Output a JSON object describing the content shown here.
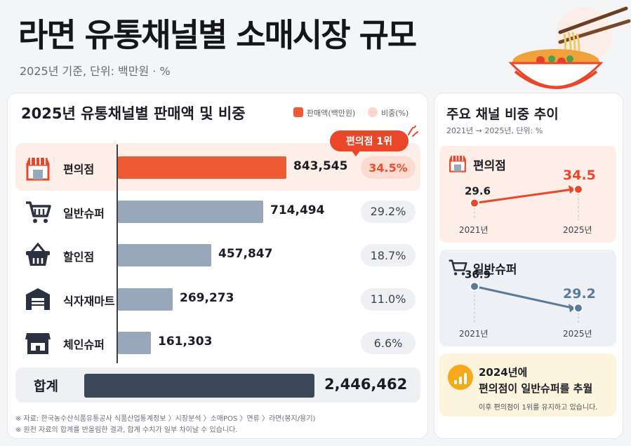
{
  "header": {
    "title": "라면 유통채널별 소매시장 규모",
    "subtitle": "2025년 기준, 단위: 백만원 · %"
  },
  "left_panel": {
    "title": "2025년 유통채널별 판매액 및 비중",
    "legend_sales": "판매액(백만원)",
    "legend_share": "비중(%)",
    "callout": "편의점 1위",
    "total_label": "합계",
    "total_value": "2,446,462"
  },
  "right_panel": {
    "title": "주요 채널 비중 추이",
    "subtitle": "2021년 → 2025년, 단위: %",
    "conv_title": "편의점",
    "super_title": "일반슈퍼",
    "year_start": "2021년",
    "year_end": "2025년",
    "note_line1": "2024년에",
    "note_line2": "편의점이 일반슈퍼를 추월",
    "note_line3": "이후 편의점이 1위를 유지하고 있습니다."
  },
  "footnotes": {
    "source": "※ 자료: 한국농수산식품유통공사 식품산업통계정보 〉시장분석 〉소매POS 〉면류 〉라면(봉지/용기)",
    "rounding": "※ 원천 자료의 합계를 반올림한 결과, 합계 수치가 일부 차이날 수 있습니다."
  },
  "colors": {
    "highlight": "#ee5a33",
    "bar_default": "#98a7b9",
    "total_bar": "#3b4658",
    "conv_line": "#e9462a",
    "super_line": "#5b7a97"
  },
  "chart_data": [
    {
      "type": "bar",
      "orientation": "horizontal",
      "title": "2025년 유통채널별 판매액 및 비중",
      "legend": [
        "판매액(백만원)",
        "비중(%)"
      ],
      "legend_position": "top-right",
      "categories": [
        "편의점",
        "일반슈퍼",
        "할인점",
        "식자재마트",
        "체인슈퍼"
      ],
      "icons": [
        "store-icon",
        "cart-icon",
        "basket-icon",
        "warehouse-icon",
        "shop-icon"
      ],
      "values": [
        843545,
        714494,
        457847,
        269273,
        161303
      ],
      "value_labels": [
        "843,545",
        "714,494",
        "457,847",
        "269,273",
        "161,303"
      ],
      "shares": [
        "34.5%",
        "29.2%",
        "18.7%",
        "11.0%",
        "6.6%"
      ],
      "total": 2446462,
      "xlim": [
        0,
        1000000
      ]
    },
    {
      "type": "line",
      "title": "편의점",
      "x": [
        "2021년",
        "2025년"
      ],
      "values": [
        29.6,
        34.5
      ],
      "value_labels": [
        "29.6",
        "34.5"
      ]
    },
    {
      "type": "line",
      "title": "일반슈퍼",
      "x": [
        "2021년",
        "2025년"
      ],
      "values": [
        36.9,
        29.2
      ],
      "value_labels": [
        "36.9",
        "29.2"
      ]
    }
  ]
}
